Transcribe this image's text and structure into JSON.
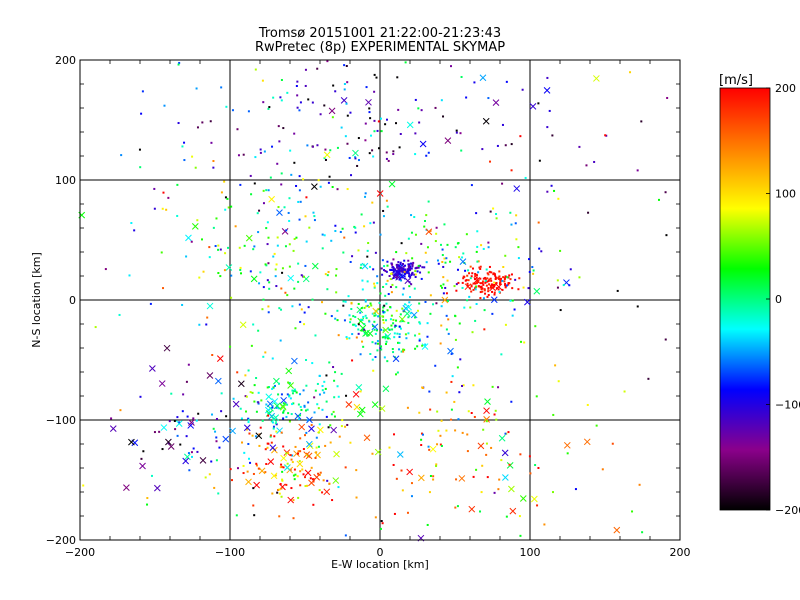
{
  "chart_data": {
    "type": "scatter",
    "title": "Tromsø 20151001 21:22:00-21:23:43",
    "subtitle": "RwPretec (8p) EXPERIMENTAL SKYMAP",
    "xlabel": "E-W location [km]",
    "ylabel": "N-S location [km]",
    "xlim": [
      -200,
      200
    ],
    "ylim": [
      -200,
      200
    ],
    "xticks": [
      "−200",
      "−100",
      "0",
      "100",
      "200"
    ],
    "yticks": [
      "−200",
      "−100",
      "0",
      "100",
      "200"
    ],
    "grid": true,
    "colorbar": {
      "label": "[m/s]",
      "range": [
        -200,
        200
      ],
      "ticks": [
        "200",
        "100",
        "0",
        "−100",
        "−200"
      ],
      "colors": [
        "#000000",
        "#8b008b",
        "#0000ff",
        "#00ffff",
        "#00ff00",
        "#ffff00",
        "#ff8000",
        "#ff0000"
      ]
    },
    "marker_types": [
      "dot",
      "cross"
    ],
    "clusters": [
      {
        "x": 15,
        "y": 25,
        "spread": [
          6,
          4
        ],
        "count": 140,
        "velocity": -110,
        "vel_spread": 15,
        "cross_frac": 0.02
      },
      {
        "x": 72,
        "y": 14,
        "spread": [
          9,
          5
        ],
        "count": 140,
        "velocity": 195,
        "vel_spread": 10,
        "cross_frac": 0.02
      },
      {
        "x": 0,
        "y": -20,
        "spread": [
          14,
          18
        ],
        "count": 170,
        "velocity": -5,
        "vel_spread": 35,
        "cross_frac": 0.12
      },
      {
        "x": -60,
        "y": -90,
        "spread": [
          20,
          15
        ],
        "count": 140,
        "velocity": -20,
        "vel_spread": 40,
        "cross_frac": 0.2
      },
      {
        "x": -60,
        "y": -140,
        "spread": [
          18,
          18
        ],
        "count": 130,
        "velocity": 140,
        "vel_spread": 50,
        "cross_frac": 0.2
      },
      {
        "x": -125,
        "y": -110,
        "spread": [
          30,
          25
        ],
        "count": 70,
        "velocity": -110,
        "vel_spread": 60,
        "cross_frac": 0.3
      },
      {
        "x": 60,
        "y": -130,
        "spread": [
          45,
          35
        ],
        "count": 110,
        "velocity": 130,
        "vel_spread": 70,
        "cross_frac": 0.25
      },
      {
        "x": -10,
        "y": 150,
        "spread": [
          70,
          35
        ],
        "count": 180,
        "velocity": -120,
        "vel_spread": 70,
        "cross_frac": 0.05
      },
      {
        "x": -80,
        "y": 40,
        "spread": [
          40,
          40
        ],
        "count": 150,
        "velocity": 10,
        "vel_spread": 60,
        "cross_frac": 0.08
      },
      {
        "x": 40,
        "y": 20,
        "spread": [
          35,
          30
        ],
        "count": 180,
        "velocity": 0,
        "vel_spread": 80,
        "cross_frac": 0.08
      },
      {
        "x": 0,
        "y": 0,
        "spread": [
          110,
          110
        ],
        "count": 280,
        "velocity": 0,
        "vel_spread": 110,
        "cross_frac": 0.1
      }
    ]
  }
}
